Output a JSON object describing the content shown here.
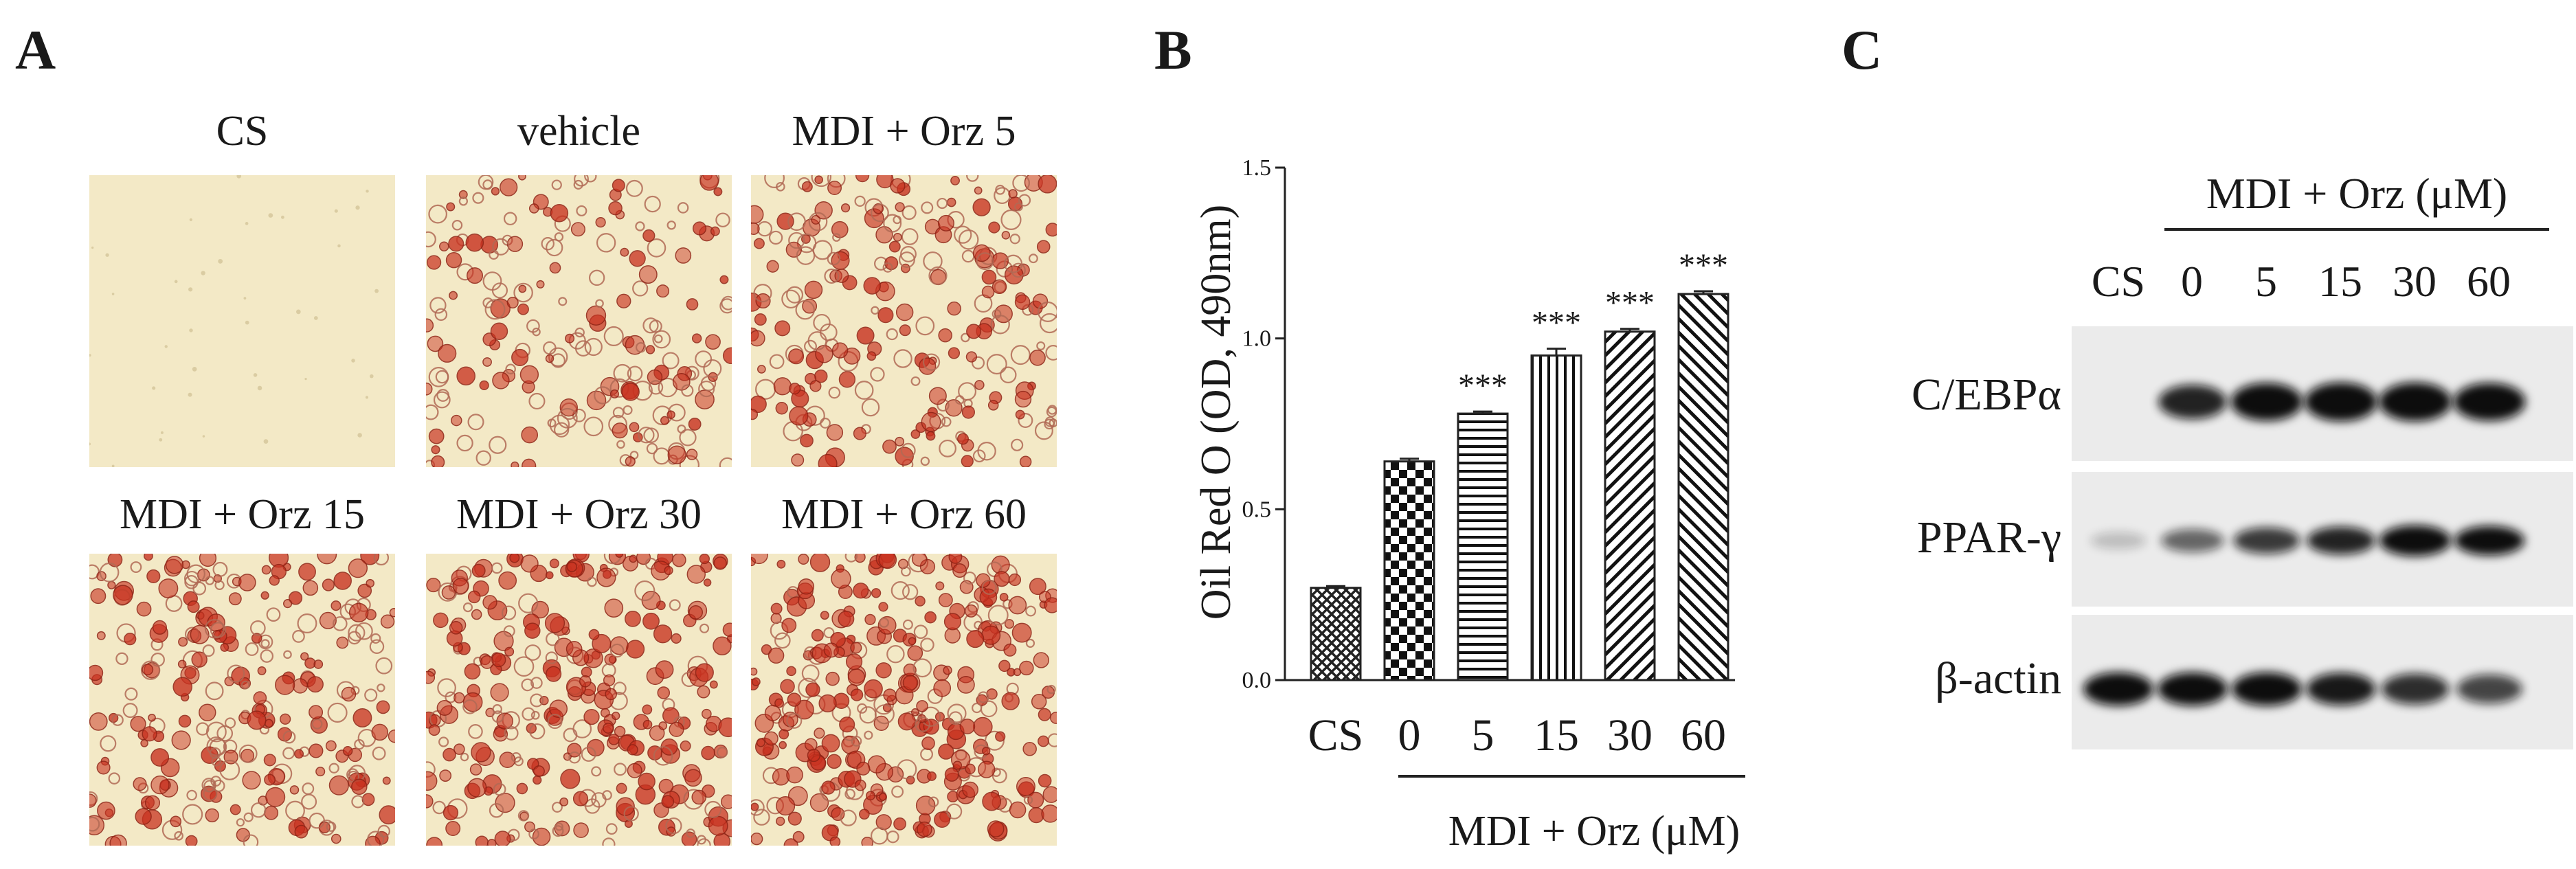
{
  "panels": {
    "a": "A",
    "b": "B",
    "c": "C"
  },
  "panel_a": {
    "images": [
      {
        "label": "CS",
        "stain": 0
      },
      {
        "label": "vehicle",
        "stain": 0.35
      },
      {
        "label": "MDI + Orz 5",
        "stain": 0.55
      },
      {
        "label": "MDI + Orz 15",
        "stain": 0.7
      },
      {
        "label": "MDI + Orz 30",
        "stain": 0.85
      },
      {
        "label": "MDI + Orz 60",
        "stain": 1.0
      }
    ],
    "colors": {
      "background": "#f3e9c6",
      "stain": "#c8311f",
      "cell_outline": "#b06a55"
    }
  },
  "chart_data": {
    "type": "bar",
    "title": "",
    "ylabel": "Oil Red O (OD, 490nm)",
    "xlabel": "MDI + Orz (μM)",
    "categories": [
      "CS",
      "0",
      "5",
      "15",
      "30",
      "60"
    ],
    "values": [
      0.27,
      0.64,
      0.78,
      0.95,
      1.02,
      1.13
    ],
    "errors": [
      0.005,
      0.008,
      0.006,
      0.02,
      0.008,
      0.008
    ],
    "annotations": [
      "",
      "",
      "***",
      "***",
      "***",
      "***"
    ],
    "patterns": [
      "crosshatch",
      "checker",
      "horizontal",
      "vertical",
      "diagonal-right",
      "diagonal-left"
    ],
    "ylim": [
      0,
      1.5
    ],
    "yticks": [
      "0.0",
      "0.5",
      "1.0",
      "1.5"
    ],
    "bracket_span": [
      "0",
      "60"
    ]
  },
  "panel_c": {
    "header": "MDI + Orz (μM)",
    "lanes": [
      "CS",
      "0",
      "5",
      "15",
      "30",
      "60"
    ],
    "blots": [
      {
        "label": "C/EBPα",
        "intensities": [
          0.0,
          0.75,
          0.95,
          1.0,
          1.0,
          0.95
        ]
      },
      {
        "label": "PPAR-γ",
        "intensities": [
          0.05,
          0.45,
          0.65,
          0.75,
          0.95,
          0.85
        ]
      },
      {
        "label": "β-actin",
        "intensities": [
          0.85,
          0.85,
          0.85,
          0.8,
          0.7,
          0.6
        ]
      }
    ]
  }
}
